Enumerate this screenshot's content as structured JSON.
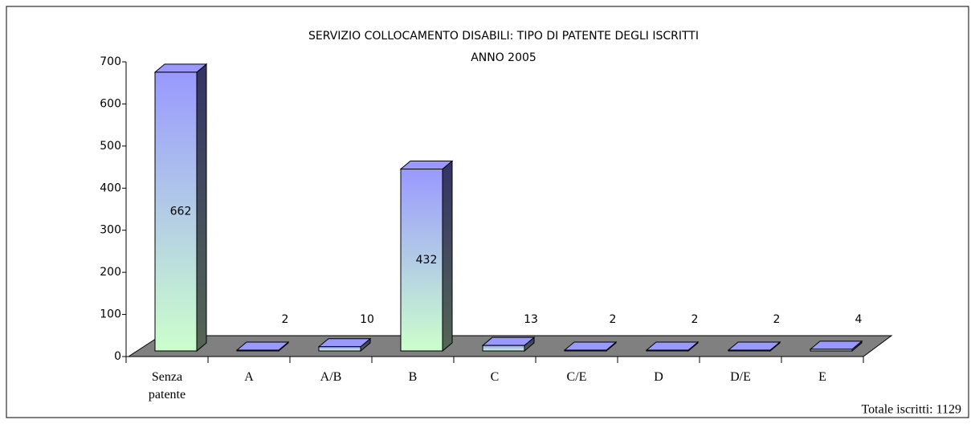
{
  "chart_data": {
    "type": "bar3d",
    "title": "SERVIZIO COLLOCAMENTO DISABILI: TIPO DI PATENTE DEGLI ISCRITTI",
    "subtitle": "ANNO 2005",
    "categories": [
      "Senza patente",
      "A",
      "A/B",
      "B",
      "C",
      "C/E",
      "D",
      "D/E",
      "E"
    ],
    "values": [
      662,
      2,
      10,
      432,
      13,
      2,
      2,
      2,
      4
    ],
    "colors": [
      "#9999ff",
      "#ccffcc"
    ],
    "ylim": [
      0,
      700
    ],
    "yticks": [
      0,
      100,
      200,
      300,
      400,
      500,
      600,
      700
    ],
    "annotation": "Totale iscritti: 1129"
  }
}
